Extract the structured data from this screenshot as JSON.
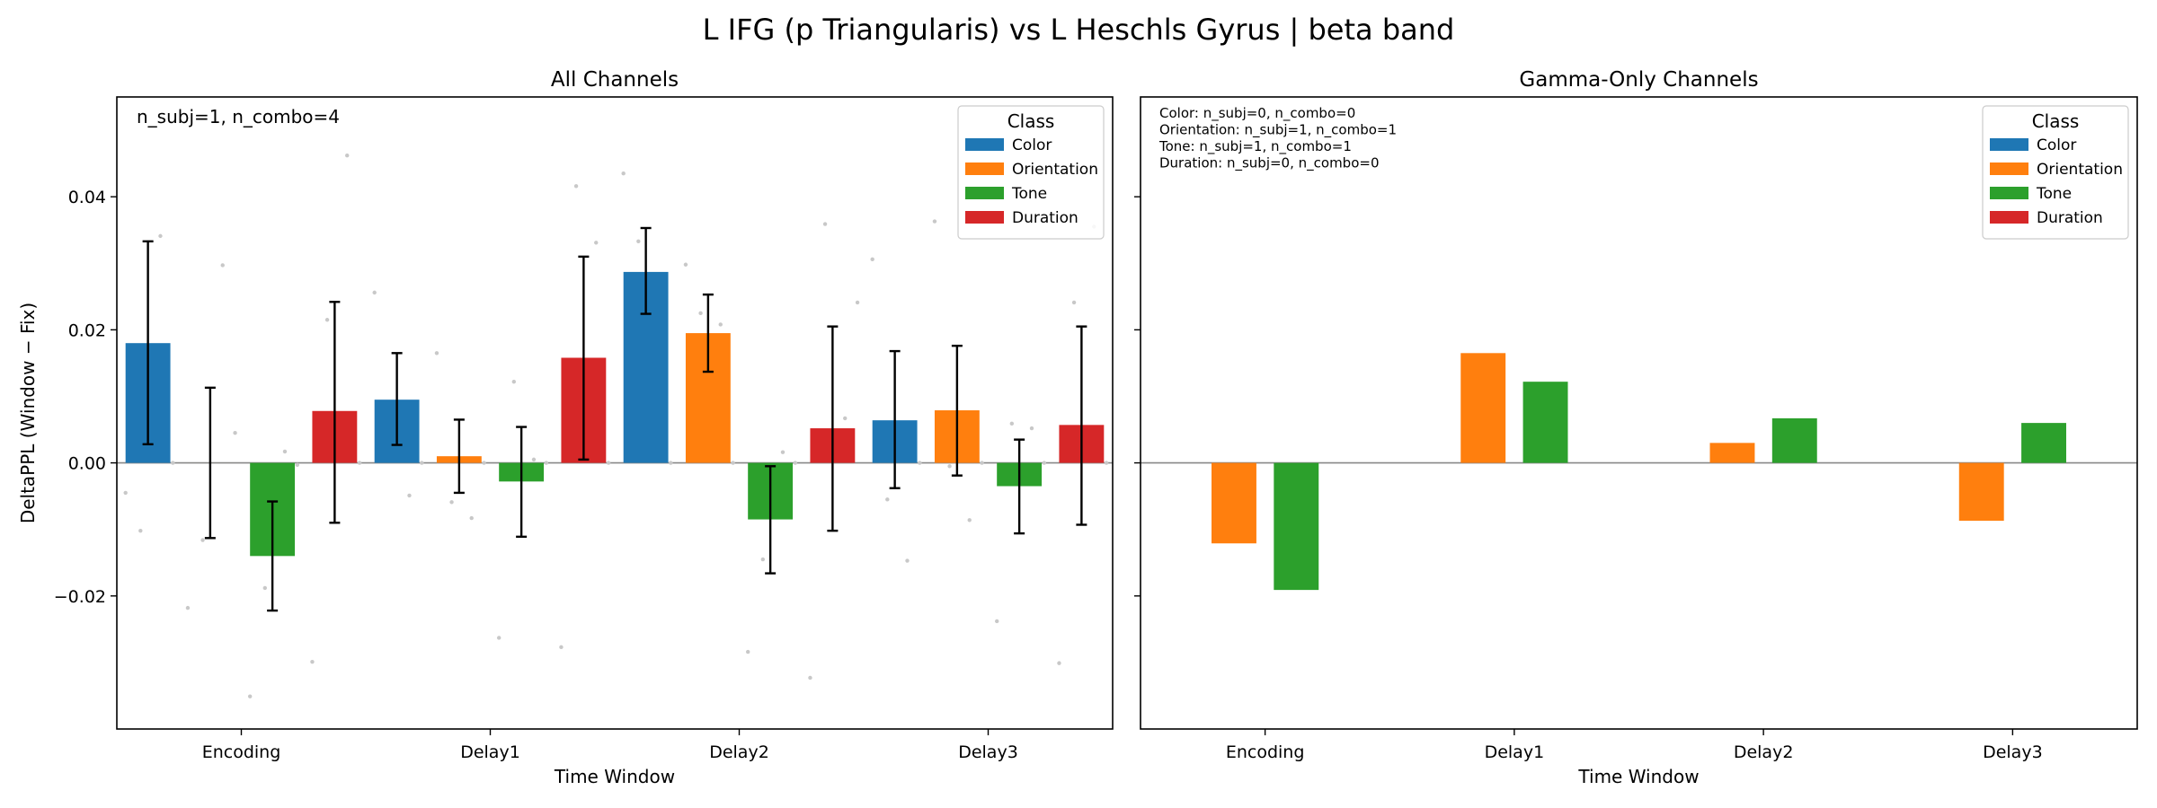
{
  "figure": {
    "suptitle": "L IFG (p Triangularis) vs L Heschls Gyrus  |  beta band"
  },
  "colors": {
    "Color": "#1f77b4",
    "Orientation": "#ff7f0e",
    "Tone": "#2ca02c",
    "Duration": "#d62728"
  },
  "chart_data": [
    {
      "type": "bar",
      "title": "All Channels",
      "xlabel": "Time Window",
      "ylabel": "DeltaPPL (Window − Fix)",
      "categories": [
        "Encoding",
        "Delay1",
        "Delay2",
        "Delay3"
      ],
      "ylim": [
        -0.04,
        0.055
      ],
      "yticks": [
        -0.02,
        0.0,
        0.02,
        0.04
      ],
      "ytick_labels": [
        "−0.02",
        "0.00",
        "0.02",
        "0.04"
      ],
      "annotation": [
        "n_subj=1, n_combo=4"
      ],
      "legend": {
        "title": "Class",
        "placement": "upper right"
      },
      "series": [
        {
          "name": "Color",
          "values": [
            0.018,
            0.0095,
            0.0287,
            0.0064
          ],
          "err_low": [
            0.0028,
            0.0027,
            0.0224,
            -0.0038
          ],
          "err_high": [
            0.0333,
            0.0165,
            0.0353,
            0.0168
          ],
          "points": [
            [
              -0.0045,
              0.0341,
              -0.0102,
              0.0
            ],
            [
              0.0256,
              -0.0049,
              0.0018,
              0.0
            ],
            [
              0.0435,
              0.0177,
              0.0333,
              0.0
            ],
            [
              0.0306,
              -0.0147,
              -0.0055,
              0.0
            ]
          ]
        },
        {
          "name": "Orientation",
          "values": [
            0.0,
            0.001,
            0.0195,
            0.0079
          ],
          "err_low": [
            -0.0113,
            -0.0045,
            0.0137,
            -0.0019
          ],
          "err_high": [
            0.0113,
            0.0065,
            0.0253,
            0.0176
          ],
          "points": [
            [
              -0.0218,
              0.0297,
              -0.0116,
              0.0045
            ],
            [
              0.0165,
              -0.0083,
              -0.0059,
              0.0
            ],
            [
              0.0298,
              0.0208,
              0.0225,
              0.0
            ],
            [
              0.0363,
              -0.0086,
              -0.0005,
              0.0
            ]
          ]
        },
        {
          "name": "Tone",
          "values": [
            -0.014,
            -0.0028,
            -0.0085,
            -0.0035
          ],
          "err_low": [
            -0.0222,
            -0.0111,
            -0.0166,
            -0.0106
          ],
          "err_high": [
            -0.0058,
            0.0054,
            -0.0005,
            0.0035
          ],
          "points": [
            [
              -0.0351,
              0.0017,
              -0.0188,
              -0.0003
            ],
            [
              -0.0263,
              0.0005,
              0.0122,
              0.0
            ],
            [
              -0.0284,
              0.0016,
              -0.0145,
              0.0
            ],
            [
              -0.0238,
              0.0052,
              0.0059,
              0.0
            ]
          ]
        },
        {
          "name": "Duration",
          "values": [
            0.0078,
            0.0158,
            0.0052,
            0.0057
          ],
          "err_low": [
            -0.009,
            0.0005,
            -0.0102,
            -0.0093
          ],
          "err_high": [
            0.0242,
            0.031,
            0.0205,
            0.0205
          ],
          "points": [
            [
              -0.0299,
              0.0462,
              0.0215,
              0.0
            ],
            [
              -0.0277,
              0.0331,
              0.0416,
              0.0
            ],
            [
              -0.0323,
              0.0067,
              0.0359,
              0.0241
            ],
            [
              -0.0301,
              0.0355,
              0.0241,
              0.0
            ]
          ]
        }
      ]
    },
    {
      "type": "bar",
      "title": "Gamma-Only Channels",
      "xlabel": "Time Window",
      "ylabel": "",
      "categories": [
        "Encoding",
        "Delay1",
        "Delay2",
        "Delay3"
      ],
      "ylim": [
        -0.04,
        0.055
      ],
      "yticks": [
        -0.02,
        0.0,
        0.02,
        0.04
      ],
      "ytick_labels": [
        "",
        "",
        "",
        ""
      ],
      "annotation": [
        "Color: n_subj=0, n_combo=0",
        "Orientation: n_subj=1, n_combo=1",
        "Tone: n_subj=1, n_combo=1",
        "Duration: n_subj=0, n_combo=0"
      ],
      "legend": {
        "title": "Class",
        "placement": "upper right"
      },
      "series": [
        {
          "name": "Orientation",
          "values": [
            -0.0121,
            0.0165,
            0.003,
            -0.0087
          ]
        },
        {
          "name": "Tone",
          "values": [
            -0.0191,
            0.0122,
            0.0067,
            0.006
          ]
        }
      ]
    }
  ]
}
